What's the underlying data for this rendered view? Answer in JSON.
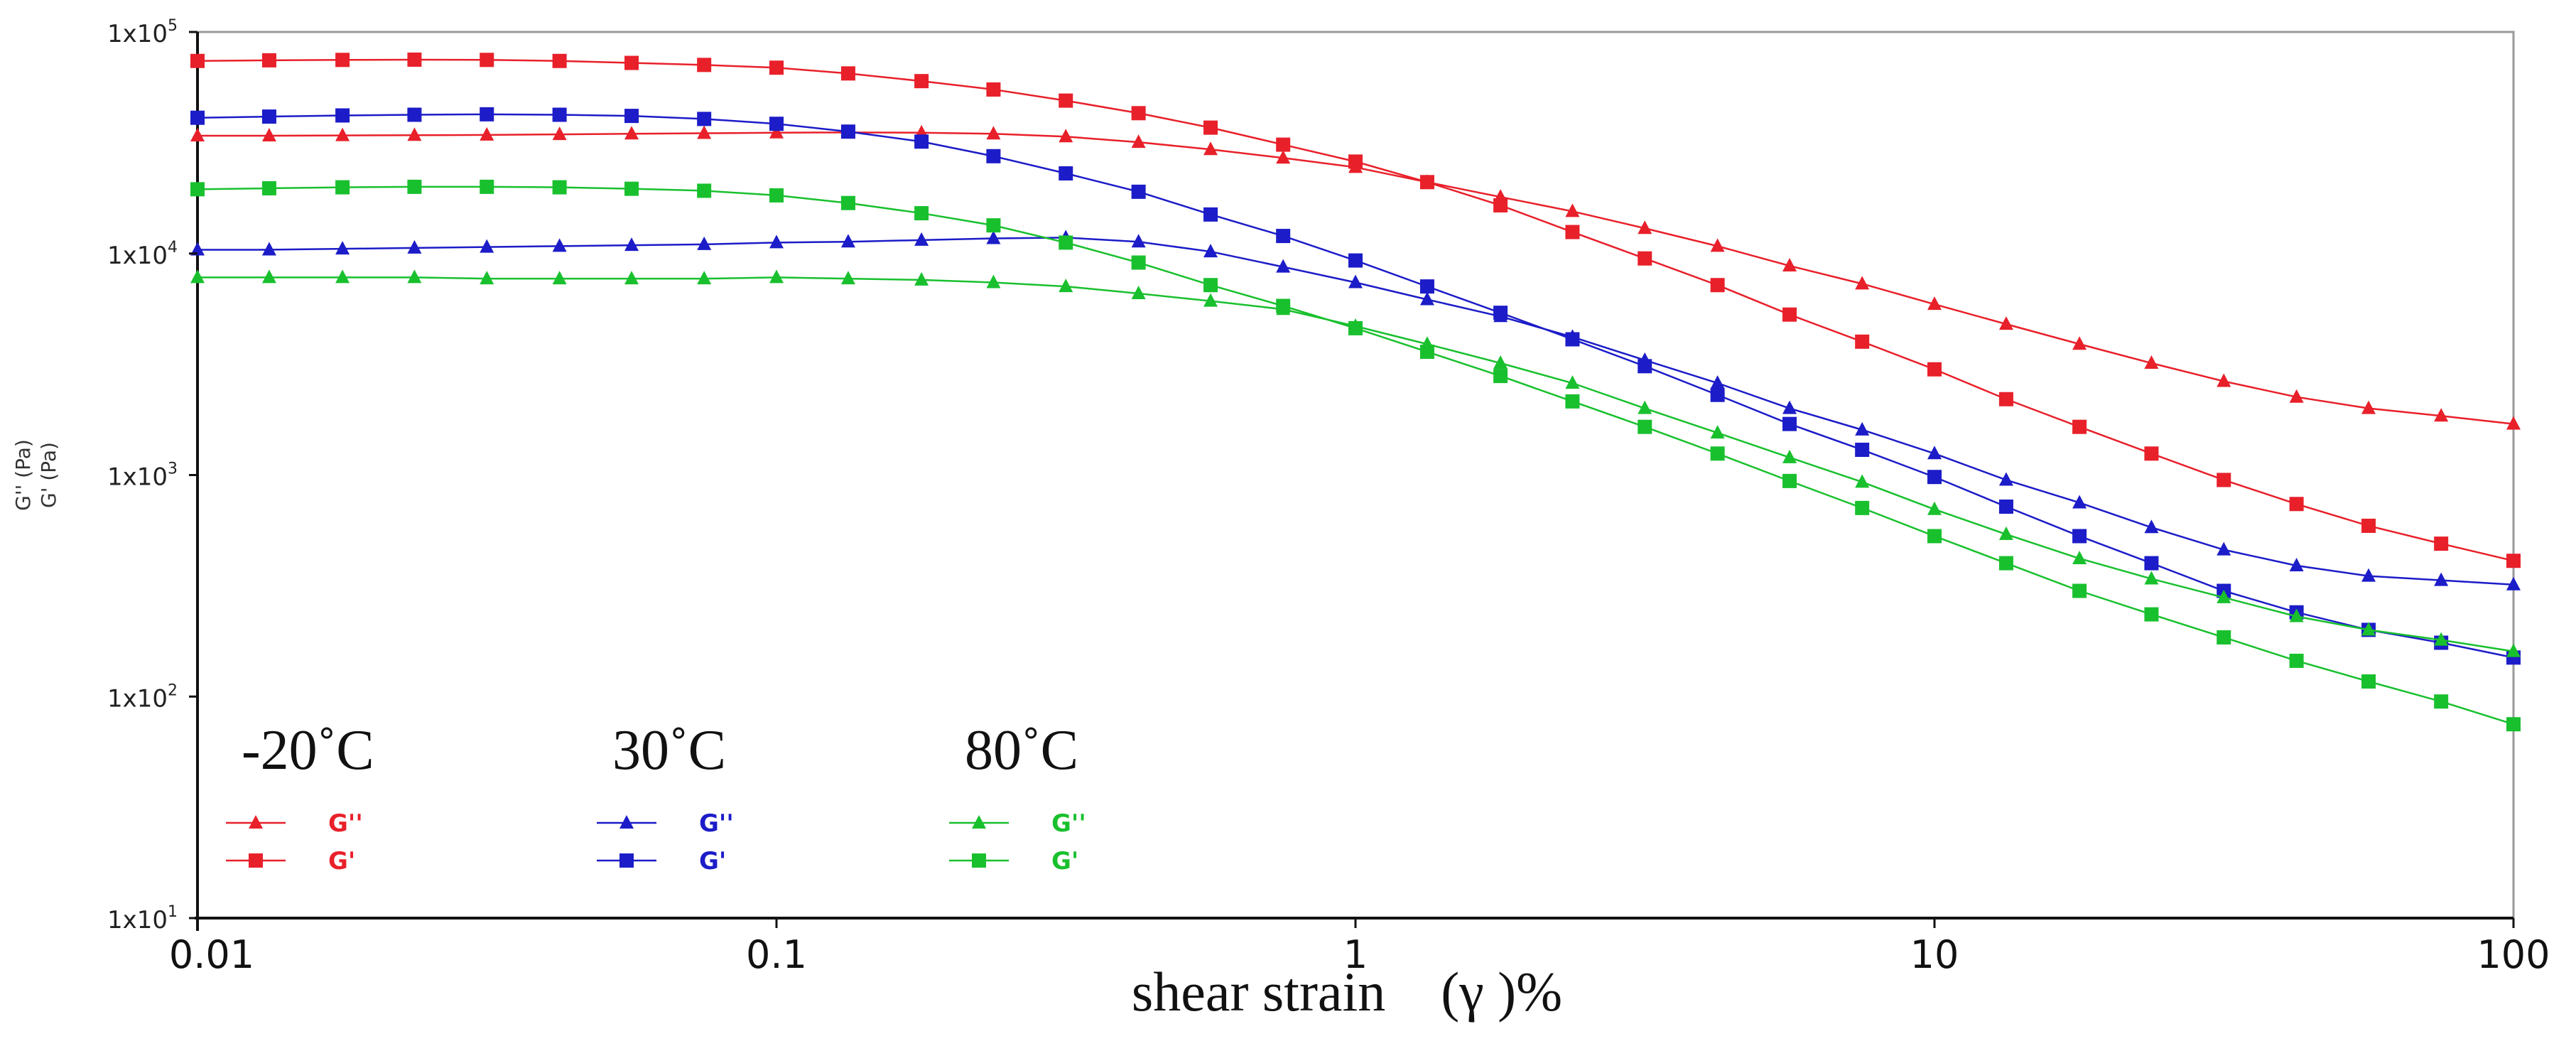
{
  "chart_data": {
    "type": "line",
    "title": "",
    "xlabel": "shear strain    (γ )%",
    "ylabel_lines": [
      "G'' (Pa)",
      "G' (Pa)"
    ],
    "xscale": "log",
    "yscale": "log",
    "xlim": [
      0.01,
      100
    ],
    "ylim": [
      10,
      100000
    ],
    "grid": false,
    "x_ticks": [
      {
        "value": 0.01,
        "label": "0.01"
      },
      {
        "value": 0.1,
        "label": "0.1"
      },
      {
        "value": 1,
        "label": "1"
      },
      {
        "value": 10,
        "label": "10"
      },
      {
        "value": 100,
        "label": "100"
      }
    ],
    "y_ticks": [
      {
        "value": 100000,
        "base": "1x10",
        "exp": "5"
      },
      {
        "value": 10000,
        "base": "1x10",
        "exp": "4"
      },
      {
        "value": 1000,
        "base": "1x10",
        "exp": "3"
      },
      {
        "value": 100,
        "base": "1x10",
        "exp": "2"
      },
      {
        "value": 10,
        "base": "1x10",
        "exp": "1"
      }
    ],
    "x": [
      0.01,
      0.0133,
      0.0178,
      0.0237,
      0.0316,
      0.0422,
      0.0562,
      0.075,
      0.1,
      0.133,
      0.178,
      0.237,
      0.316,
      0.422,
      0.562,
      0.75,
      1.0,
      1.33,
      1.78,
      2.37,
      3.16,
      4.22,
      5.62,
      7.5,
      10,
      13.3,
      17.8,
      23.7,
      31.6,
      42.2,
      56.2,
      75,
      100
    ],
    "legend_groups": [
      {
        "title": "-20˚C",
        "color": "#e8202a"
      },
      {
        "title": "30˚C",
        "color": "#1c1cc8"
      },
      {
        "title": "80˚C",
        "color": "#19c02e"
      }
    ],
    "series": [
      {
        "name": "G''",
        "group": "-20˚C",
        "marker": "triangle",
        "color": "#e8202a",
        "values": [
          34000,
          34000,
          34100,
          34200,
          34300,
          34500,
          34700,
          34900,
          35100,
          35200,
          35100,
          34700,
          33700,
          31800,
          29500,
          27000,
          24500,
          21000,
          18000,
          15500,
          13000,
          10800,
          8800,
          7300,
          5900,
          4800,
          3900,
          3200,
          2650,
          2250,
          2000,
          1850,
          1700
        ]
      },
      {
        "name": "G'",
        "group": "-20˚C",
        "marker": "square",
        "color": "#e8202a",
        "values": [
          74000,
          74500,
          74800,
          75000,
          74800,
          74000,
          72500,
          71000,
          69000,
          65000,
          60000,
          55000,
          49000,
          43000,
          37000,
          31000,
          26000,
          21000,
          16500,
          12500,
          9500,
          7200,
          5300,
          4000,
          3000,
          2200,
          1650,
          1250,
          950,
          740,
          590,
          490,
          410
        ]
      },
      {
        "name": "G''",
        "group": "30˚C",
        "marker": "triangle",
        "color": "#1c1cc8",
        "values": [
          10400,
          10400,
          10500,
          10600,
          10700,
          10800,
          10900,
          11000,
          11200,
          11300,
          11500,
          11700,
          11800,
          11300,
          10200,
          8700,
          7400,
          6200,
          5200,
          4200,
          3300,
          2600,
          2000,
          1600,
          1250,
          950,
          750,
          580,
          460,
          390,
          350,
          335,
          320
        ]
      },
      {
        "name": "G'",
        "group": "30˚C",
        "marker": "square",
        "color": "#1c1cc8",
        "values": [
          41000,
          41500,
          42000,
          42300,
          42500,
          42300,
          41800,
          40500,
          38500,
          35500,
          32000,
          27500,
          23000,
          19000,
          15000,
          12000,
          9300,
          7100,
          5400,
          4100,
          3100,
          2300,
          1700,
          1300,
          980,
          720,
          530,
          400,
          300,
          240,
          200,
          175,
          150
        ]
      },
      {
        "name": "G''",
        "group": "80˚C",
        "marker": "triangle",
        "color": "#19c02e",
        "values": [
          7800,
          7800,
          7800,
          7800,
          7700,
          7700,
          7700,
          7700,
          7800,
          7700,
          7600,
          7400,
          7100,
          6600,
          6100,
          5600,
          4700,
          3900,
          3200,
          2600,
          2000,
          1550,
          1200,
          930,
          700,
          540,
          420,
          340,
          280,
          230,
          200,
          180,
          160
        ]
      },
      {
        "name": "G'",
        "group": "80˚C",
        "marker": "square",
        "color": "#19c02e",
        "values": [
          19500,
          19700,
          19900,
          20000,
          20000,
          19900,
          19600,
          19200,
          18300,
          16900,
          15200,
          13400,
          11200,
          9100,
          7200,
          5800,
          4600,
          3600,
          2800,
          2150,
          1650,
          1250,
          940,
          710,
          530,
          400,
          300,
          235,
          185,
          145,
          117,
          95,
          75
        ]
      }
    ]
  }
}
